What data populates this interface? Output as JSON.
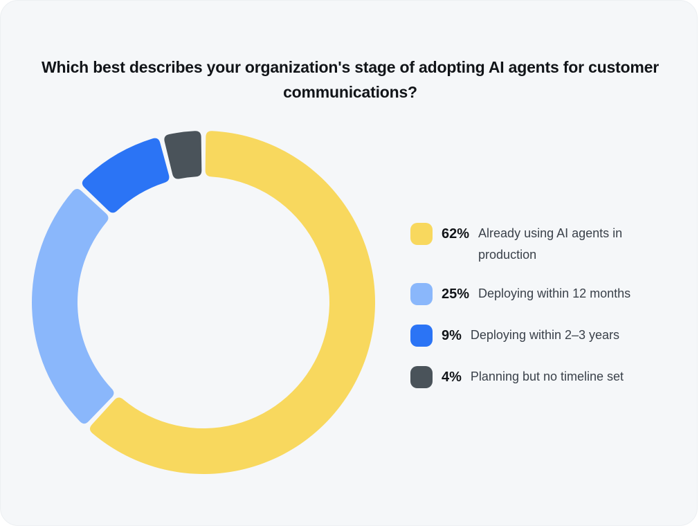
{
  "title": "Which best describes your organization's stage of adopting AI agents for customer communications?",
  "chart_data": {
    "type": "pie",
    "variant": "donut",
    "title": "Which best describes your organization's stage of adopting AI agents for customer communications?",
    "categories": [
      "Already using AI agents in production",
      "Deploying within 12 months",
      "Deploying within 2–3 years",
      "Planning but no timeline set"
    ],
    "values": [
      62,
      25,
      9,
      4
    ],
    "value_labels": [
      "62%",
      "25%",
      "9%",
      "4%"
    ],
    "colors": [
      "#f8d85e",
      "#8ab7fb",
      "#2b74f5",
      "#4a535a"
    ],
    "legend_position": "right"
  },
  "legend": [
    {
      "pct": "62%",
      "label": "Already using AI agents in production",
      "color": "#f8d85e"
    },
    {
      "pct": "25%",
      "label": "Deploying within 12 months",
      "color": "#8ab7fb"
    },
    {
      "pct": "9%",
      "label": "Deploying within 2–3 years",
      "color": "#2b74f5"
    },
    {
      "pct": "4%",
      "label": "Planning but no timeline set",
      "color": "#4a535a"
    }
  ]
}
